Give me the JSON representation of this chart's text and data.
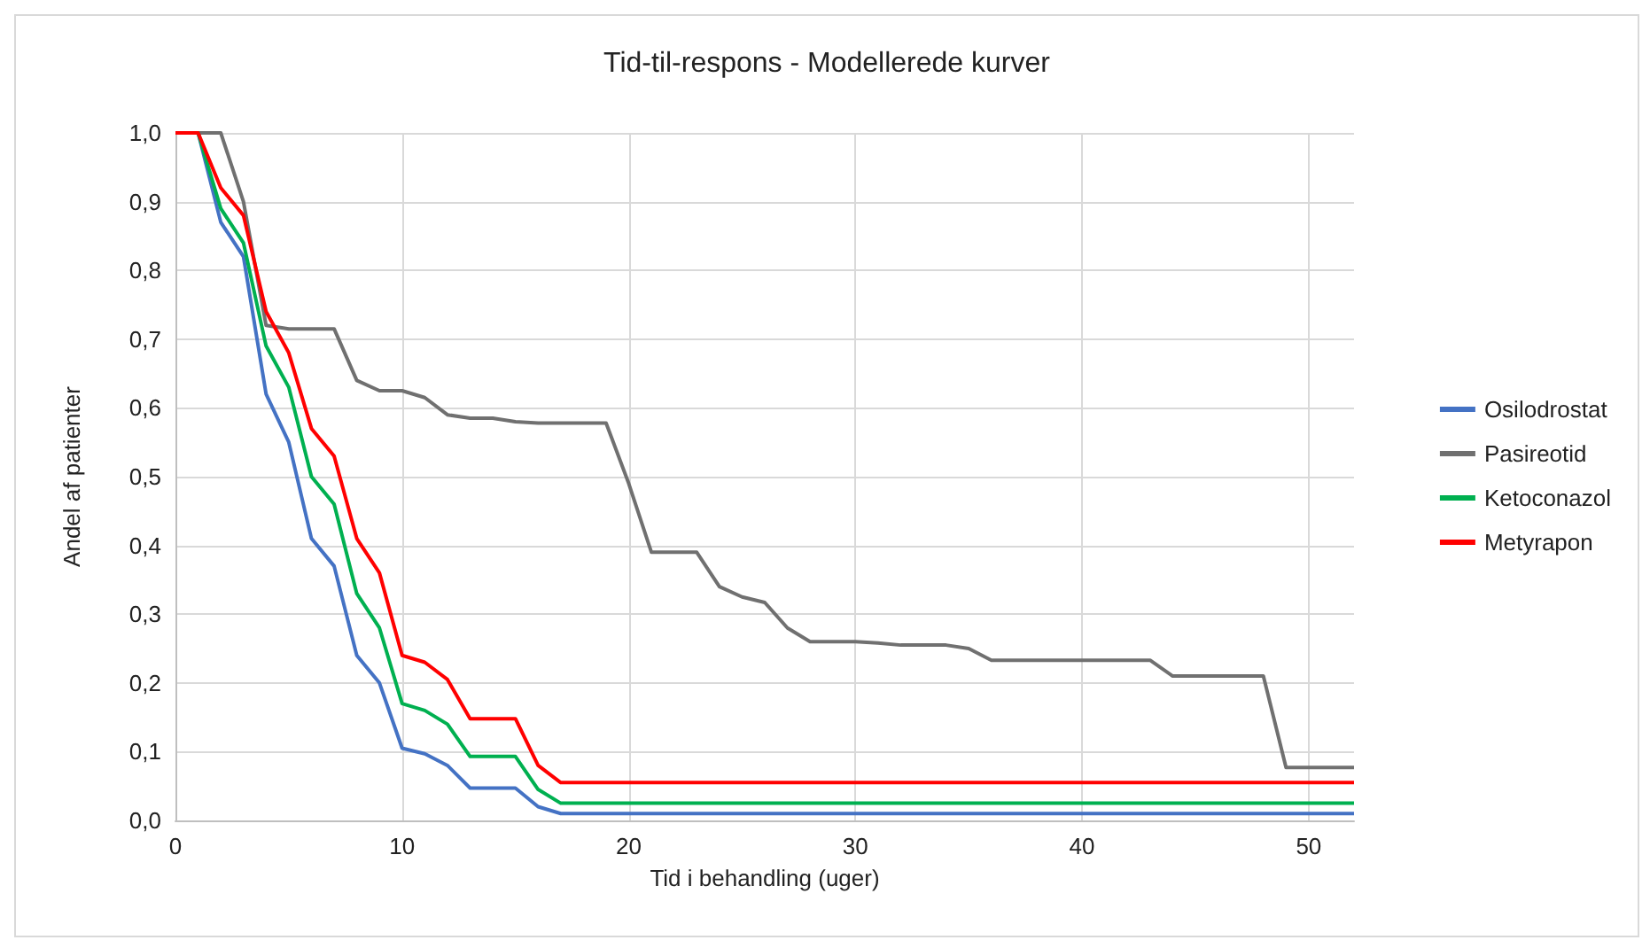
{
  "chart_data": {
    "type": "line",
    "title": "Tid-til-respons - Modellerede kurver",
    "xlabel": "Tid i behandling (uger)",
    "ylabel": "Andel af patienter",
    "x": [
      0,
      1,
      2,
      3,
      4,
      5,
      6,
      7,
      8,
      9,
      10,
      11,
      12,
      13,
      14,
      15,
      16,
      17,
      18,
      19,
      20,
      21,
      22,
      23,
      24,
      25,
      26,
      27,
      28,
      29,
      30,
      31,
      32,
      33,
      34,
      35,
      36,
      37,
      38,
      39,
      40,
      41,
      42,
      43,
      44,
      45,
      46,
      47,
      48,
      49,
      50,
      51,
      52
    ],
    "series": [
      {
        "name": "Osilodrostat",
        "color": "#4472c4",
        "values": [
          1,
          1,
          0.87,
          0.82,
          0.62,
          0.55,
          0.41,
          0.37,
          0.24,
          0.2,
          0.105,
          0.097,
          0.08,
          0.047,
          0.047,
          0.047,
          0.02,
          0.01,
          0.01,
          0.01,
          0.01,
          0.01,
          0.01,
          0.01,
          0.01,
          0.01,
          0.01,
          0.01,
          0.01,
          0.01,
          0.01,
          0.01,
          0.01,
          0.01,
          0.01,
          0.01,
          0.01,
          0.01,
          0.01,
          0.01,
          0.01,
          0.01,
          0.01,
          0.01,
          0.01,
          0.01,
          0.01,
          0.01,
          0.01,
          0.01,
          0.01,
          0.01,
          0.01
        ]
      },
      {
        "name": "Pasireotid",
        "color": "#707070",
        "values": [
          1,
          1,
          1,
          0.9,
          0.72,
          0.715,
          0.715,
          0.715,
          0.64,
          0.625,
          0.625,
          0.615,
          0.59,
          0.585,
          0.585,
          0.58,
          0.578,
          0.578,
          0.578,
          0.578,
          0.49,
          0.39,
          0.39,
          0.39,
          0.34,
          0.325,
          0.317,
          0.28,
          0.26,
          0.26,
          0.26,
          0.258,
          0.255,
          0.255,
          0.255,
          0.25,
          0.233,
          0.233,
          0.233,
          0.233,
          0.233,
          0.233,
          0.233,
          0.233,
          0.21,
          0.21,
          0.21,
          0.21,
          0.21,
          0.077,
          0.077,
          0.077,
          0.077
        ]
      },
      {
        "name": "Ketoconazol",
        "color": "#00b050",
        "values": [
          1,
          1,
          0.89,
          0.84,
          0.69,
          0.63,
          0.5,
          0.46,
          0.33,
          0.28,
          0.17,
          0.16,
          0.14,
          0.093,
          0.093,
          0.093,
          0.045,
          0.025,
          0.025,
          0.025,
          0.025,
          0.025,
          0.025,
          0.025,
          0.025,
          0.025,
          0.025,
          0.025,
          0.025,
          0.025,
          0.025,
          0.025,
          0.025,
          0.025,
          0.025,
          0.025,
          0.025,
          0.025,
          0.025,
          0.025,
          0.025,
          0.025,
          0.025,
          0.025,
          0.025,
          0.025,
          0.025,
          0.025,
          0.025,
          0.025,
          0.025,
          0.025,
          0.025
        ]
      },
      {
        "name": "Metyrapon",
        "color": "#ff0000",
        "values": [
          1,
          1,
          0.92,
          0.88,
          0.74,
          0.68,
          0.57,
          0.53,
          0.41,
          0.36,
          0.24,
          0.23,
          0.205,
          0.148,
          0.148,
          0.148,
          0.08,
          0.055,
          0.055,
          0.055,
          0.055,
          0.055,
          0.055,
          0.055,
          0.055,
          0.055,
          0.055,
          0.055,
          0.055,
          0.055,
          0.055,
          0.055,
          0.055,
          0.055,
          0.055,
          0.055,
          0.055,
          0.055,
          0.055,
          0.055,
          0.055,
          0.055,
          0.055,
          0.055,
          0.055,
          0.055,
          0.055,
          0.055,
          0.055,
          0.055,
          0.055,
          0.055,
          0.055
        ]
      }
    ],
    "xlim": [
      0,
      52
    ],
    "xticks": [
      0,
      10,
      20,
      30,
      40,
      50
    ],
    "ylim": [
      0,
      1
    ],
    "yticks": [
      {
        "value": 0,
        "label": "0,0"
      },
      {
        "value": 0.1,
        "label": "0,1"
      },
      {
        "value": 0.2,
        "label": "0,2"
      },
      {
        "value": 0.3,
        "label": "0,3"
      },
      {
        "value": 0.4,
        "label": "0,4"
      },
      {
        "value": 0.5,
        "label": "0,5"
      },
      {
        "value": 0.6,
        "label": "0,6"
      },
      {
        "value": 0.7,
        "label": "0,7"
      },
      {
        "value": 0.8,
        "label": "0,8"
      },
      {
        "value": 0.9,
        "label": "0,9"
      },
      {
        "value": 1,
        "label": "1,0"
      }
    ],
    "grid": true,
    "legend": "right",
    "marker": "none",
    "line_style": "solid"
  }
}
